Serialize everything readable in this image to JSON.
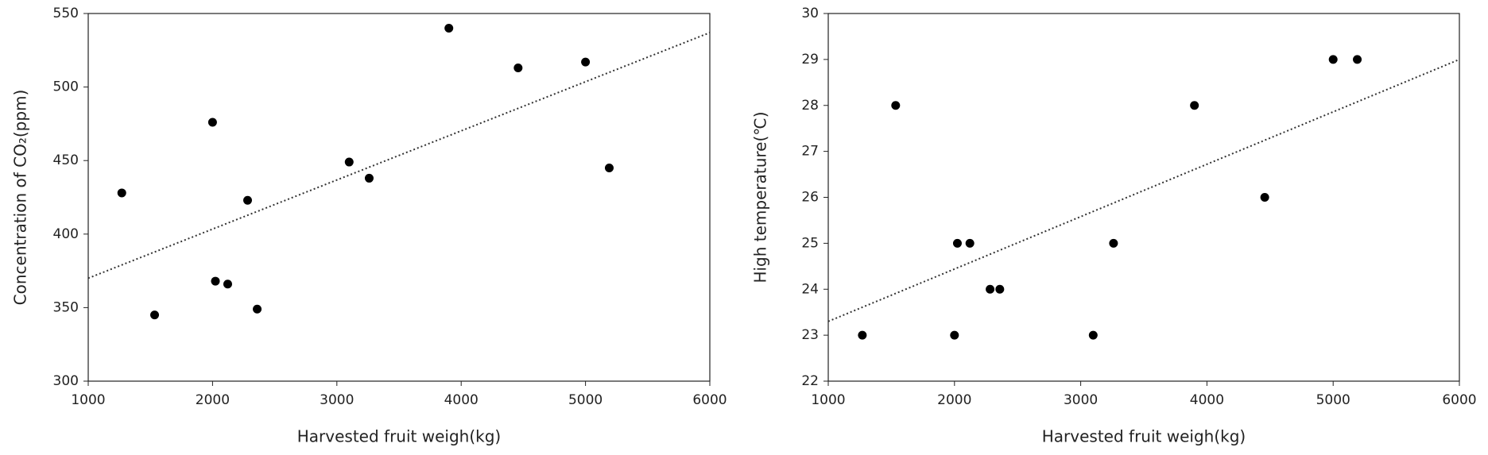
{
  "chart_data": [
    {
      "type": "scatter",
      "xlabel": "Harvested fruit weigh(kg)",
      "ylabel": "Concentration of CO₂(ppm)",
      "x": [
        1270,
        1534,
        2000,
        2023,
        2122,
        2282,
        2359,
        3099,
        3260,
        3901,
        4458,
        5000,
        5191
      ],
      "series": [
        {
          "color": "#000000",
          "values": [
            428,
            345,
            476,
            368,
            366,
            423,
            349,
            449,
            438,
            540,
            513,
            517,
            445
          ]
        }
      ],
      "trendline": {
        "x": [
          1000,
          6000
        ],
        "y": [
          370,
          537
        ],
        "color": "#333333"
      },
      "xlim": [
        1000,
        6000
      ],
      "xticks": [
        1000,
        2000,
        3000,
        4000,
        5000,
        6000
      ],
      "ylim": [
        300,
        550
      ],
      "yticks": [
        300,
        350,
        400,
        450,
        500,
        550
      ],
      "grid": false
    },
    {
      "type": "scatter",
      "xlabel": "Harvested fruit weigh(kg)",
      "ylabel": "High temperature(℃)",
      "x": [
        1270,
        1534,
        2000,
        2023,
        2122,
        2282,
        2359,
        3099,
        3260,
        3901,
        4458,
        5000,
        5191
      ],
      "series": [
        {
          "color": "#000000",
          "values": [
            23,
            28,
            23,
            25,
            25,
            24,
            24,
            23,
            25,
            28,
            26,
            29,
            29
          ]
        }
      ],
      "trendline": {
        "x": [
          1000,
          6000
        ],
        "y": [
          23.3,
          29.0
        ],
        "color": "#333333"
      },
      "xlim": [
        1000,
        6000
      ],
      "xticks": [
        1000,
        2000,
        3000,
        4000,
        5000,
        6000
      ],
      "ylim": [
        22,
        30
      ],
      "yticks": [
        22,
        23,
        24,
        25,
        26,
        27,
        28,
        29,
        30
      ],
      "grid": false
    }
  ]
}
